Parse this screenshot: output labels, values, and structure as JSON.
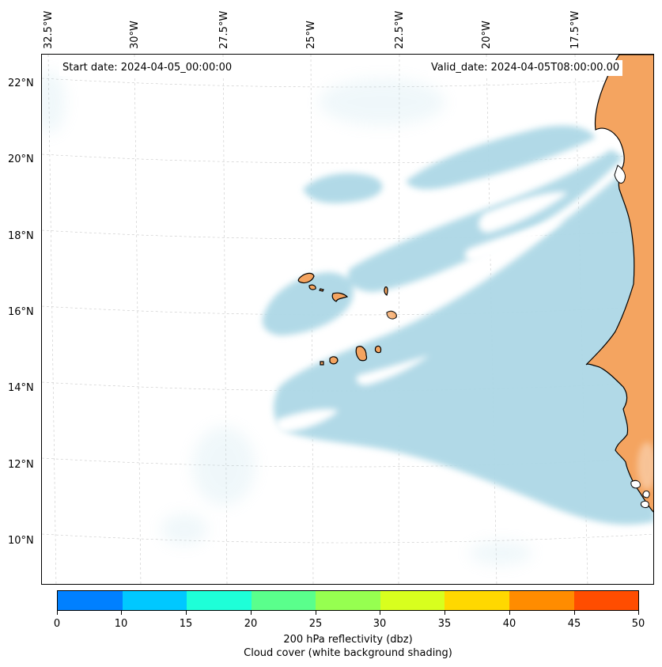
{
  "map": {
    "start_label": "Start date: 2024-04-05_00:00:00",
    "valid_label": "Valid_date: 2024-04-05T08:00:00.00",
    "longitude_labels": [
      "32.5°W",
      "30°W",
      "27.5°W",
      "25°W",
      "22.5°W",
      "20°W",
      "17.5°W"
    ],
    "latitude_labels": [
      "22°N",
      "20°N",
      "18°N",
      "16°N",
      "14°N",
      "12°N",
      "10°N"
    ],
    "cloud_color": "#add8e6",
    "land_color": "#f4a460",
    "ocean_color": "#ffffff",
    "gridline_color": "#c8c8c8"
  },
  "colorbar": {
    "caption_line1": "200 hPa reflectivity (dbz)",
    "caption_line2": "Cloud cover (white background shading)",
    "ticks": [
      "0",
      "10",
      "15",
      "20",
      "25",
      "30",
      "35",
      "40",
      "45",
      "50"
    ],
    "colors": [
      "#0080ff",
      "#00c8ff",
      "#1effd8",
      "#5aff8c",
      "#96ff50",
      "#d8ff1e",
      "#ffd800",
      "#ff8c00",
      "#ff4d00"
    ]
  }
}
